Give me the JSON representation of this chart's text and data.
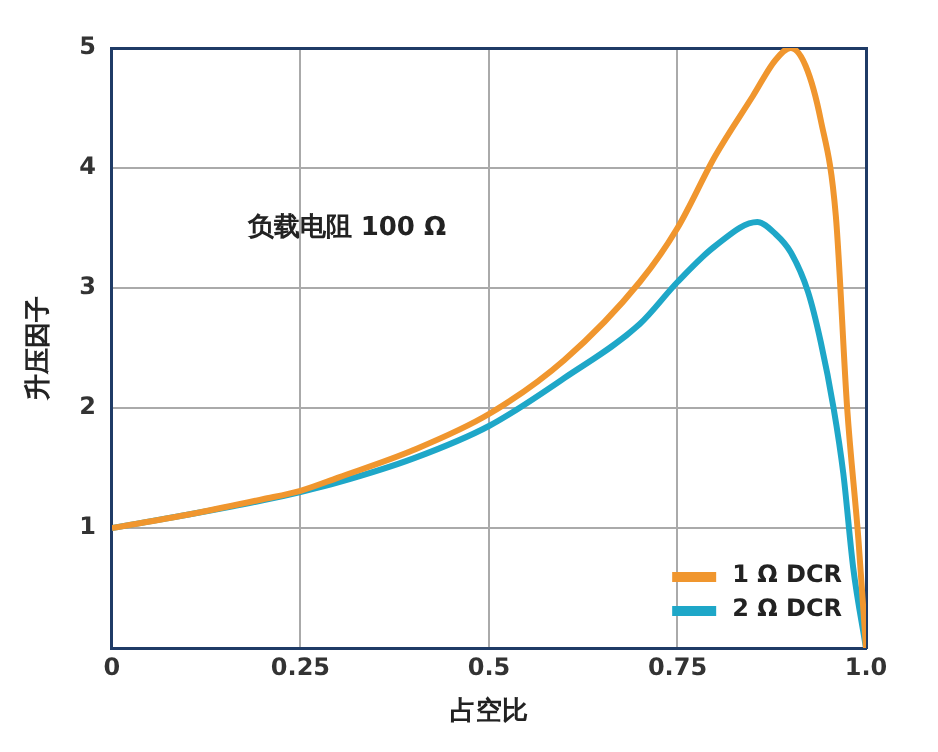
{
  "chart_data": {
    "type": "line",
    "xlabel": "占空比",
    "ylabel": "升压因子",
    "annotations": [
      "负载电阻 100 Ω"
    ],
    "xlim": [
      0,
      1
    ],
    "xticks": [
      0,
      0.25,
      0.5,
      0.75,
      {
        "value": 1,
        "label": "1.0"
      }
    ],
    "ylim": [
      0,
      5
    ],
    "yticks": [
      1,
      2,
      3,
      4,
      5
    ],
    "grid": true,
    "legend": "bottom right",
    "series": [
      {
        "name": "1 Ω DCR",
        "color": "#f0962e",
        "x": [
          0,
          0.1,
          0.2,
          0.25,
          0.3,
          0.4,
          0.5,
          0.6,
          0.7,
          0.75,
          0.8,
          0.85,
          0.88,
          0.9,
          0.92,
          0.94,
          0.96,
          0.975,
          0.99,
          1.0
        ],
        "values": [
          1,
          1.11,
          1.24,
          1.31,
          1.42,
          1.65,
          1.95,
          2.4,
          3.05,
          3.5,
          4.1,
          4.6,
          4.9,
          5.0,
          4.85,
          4.4,
          3.6,
          2.0,
          0.9,
          0
        ]
      },
      {
        "name": "2 Ω DCR",
        "color": "#1ea7c8",
        "x": [
          0,
          0.1,
          0.2,
          0.25,
          0.3,
          0.4,
          0.5,
          0.6,
          0.7,
          0.75,
          0.8,
          0.856,
          0.88,
          0.9,
          0.923,
          0.94,
          0.957,
          0.97,
          0.983,
          1.0
        ],
        "values": [
          1,
          1.11,
          1.23,
          1.3,
          1.38,
          1.58,
          1.85,
          2.25,
          2.7,
          3.05,
          3.35,
          3.55,
          3.45,
          3.3,
          2.97,
          2.55,
          2.0,
          1.45,
          0.67,
          0
        ]
      }
    ]
  }
}
